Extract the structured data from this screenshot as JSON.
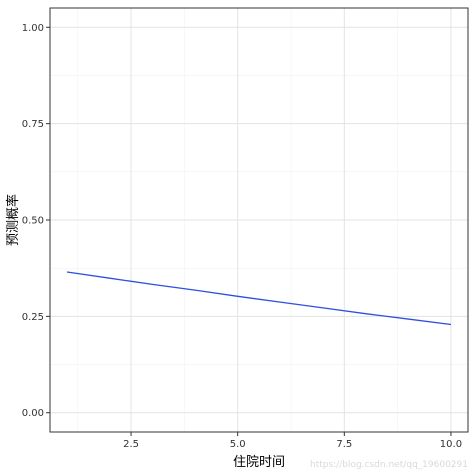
{
  "chart_data": {
    "type": "line",
    "xlabel": "住院时间",
    "ylabel": "预测概率",
    "xlim": [
      0.6,
      10.4
    ],
    "ylim": [
      -0.05,
      1.05
    ],
    "x_ticks": [
      2.5,
      5.0,
      7.5,
      10.0
    ],
    "x_tick_labels": [
      "2.5",
      "5.0",
      "7.5",
      "10.0"
    ],
    "y_ticks": [
      0.0,
      0.25,
      0.5,
      0.75,
      1.0
    ],
    "y_tick_labels": [
      "0.00",
      "0.25",
      "0.50",
      "0.75",
      "1.00"
    ],
    "x_minor": [
      1.25,
      3.75,
      6.25,
      8.75
    ],
    "y_minor": [
      0.125,
      0.375,
      0.625,
      0.875
    ],
    "grid": true,
    "series": [
      {
        "color": "#2e4fe0",
        "x": [
          1,
          2,
          3,
          4,
          5,
          6,
          7,
          8,
          9,
          10
        ],
        "y": [
          0.365,
          0.349,
          0.333,
          0.318,
          0.302,
          0.287,
          0.272,
          0.257,
          0.243,
          0.229
        ]
      }
    ]
  },
  "watermark": "https://blog.csdn.net/qq_19600291"
}
